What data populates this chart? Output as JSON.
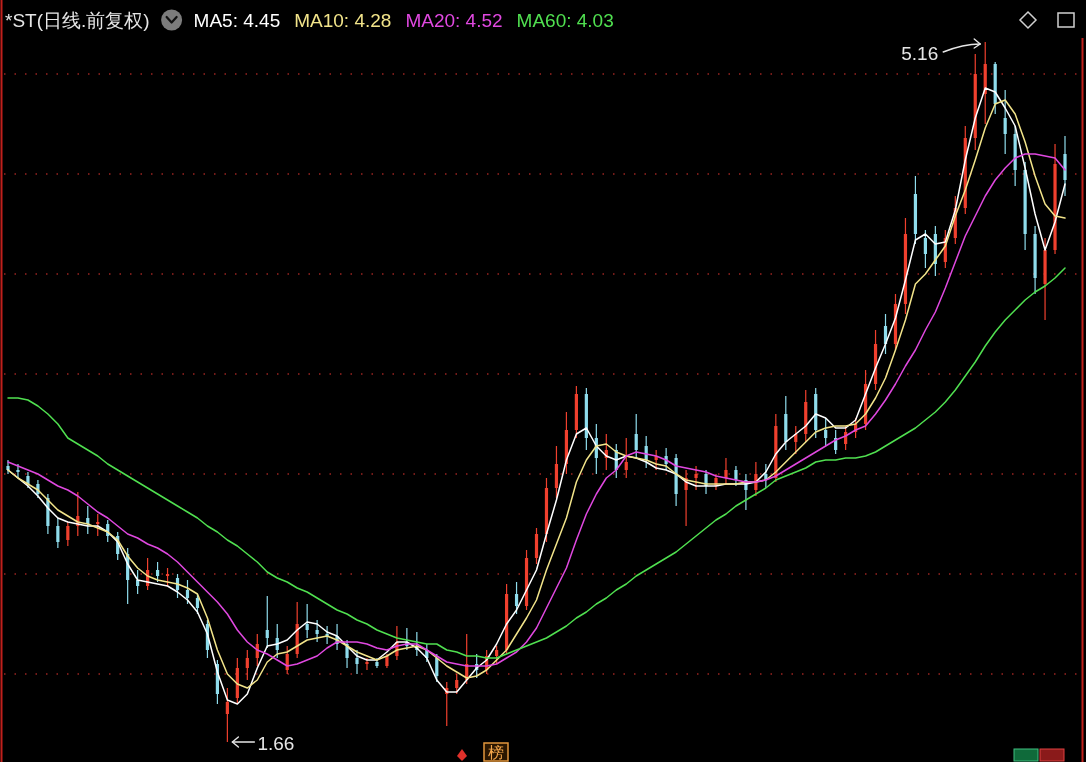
{
  "chart_data": {
    "type": "candlestick",
    "title": "*ST(日线.前复权)",
    "categories": [
      null,
      null,
      null,
      null,
      null,
      null,
      null,
      null,
      null,
      null,
      null,
      null,
      null,
      null,
      null,
      null,
      null,
      null,
      null,
      null,
      null,
      null,
      null,
      null,
      null,
      null,
      null,
      null,
      null,
      null,
      null,
      null,
      null,
      null,
      null,
      null,
      null,
      null,
      null,
      null,
      null,
      null,
      null,
      null,
      null,
      null,
      null,
      null,
      null,
      null,
      null,
      null,
      null,
      null,
      null,
      null,
      null,
      null,
      null,
      null,
      null,
      null,
      null,
      null,
      null,
      null,
      null,
      null,
      null,
      null,
      null,
      null,
      null,
      null,
      null,
      null,
      null,
      null,
      null,
      null,
      null,
      null,
      null,
      null,
      null,
      null,
      null,
      null,
      null,
      null,
      null,
      null,
      null,
      null,
      null,
      null,
      null,
      null,
      null,
      null,
      null,
      null,
      null,
      null,
      null,
      null,
      null
    ],
    "ohlc": [
      [
        3.04,
        3.07,
        3.0,
        3.02
      ],
      [
        3.02,
        3.05,
        2.98,
        3.01
      ],
      [
        2.99,
        3.01,
        2.93,
        2.95
      ],
      [
        2.95,
        2.97,
        2.88,
        2.9
      ],
      [
        2.88,
        2.9,
        2.7,
        2.74
      ],
      [
        2.74,
        2.78,
        2.63,
        2.66
      ],
      [
        2.67,
        2.76,
        2.64,
        2.74
      ],
      [
        2.74,
        2.91,
        2.69,
        2.79
      ],
      [
        2.78,
        2.84,
        2.7,
        2.75
      ],
      [
        2.75,
        2.8,
        2.69,
        2.76
      ],
      [
        2.75,
        2.77,
        2.66,
        2.69
      ],
      [
        2.69,
        2.71,
        2.57,
        2.6
      ],
      [
        2.6,
        2.63,
        2.35,
        2.47
      ],
      [
        2.47,
        2.52,
        2.4,
        2.44
      ],
      [
        2.44,
        2.58,
        2.42,
        2.52
      ],
      [
        2.52,
        2.56,
        2.46,
        2.49
      ],
      [
        2.49,
        2.53,
        2.44,
        2.5
      ],
      [
        2.48,
        2.5,
        2.38,
        2.42
      ],
      [
        2.42,
        2.47,
        2.35,
        2.38
      ],
      [
        2.38,
        2.4,
        2.3,
        2.33
      ],
      [
        2.25,
        2.27,
        2.08,
        2.12
      ],
      [
        2.05,
        2.07,
        1.85,
        1.9
      ],
      [
        1.8,
        1.93,
        1.66,
        1.86
      ],
      [
        1.88,
        2.08,
        1.85,
        2.03
      ],
      [
        2.03,
        2.12,
        1.97,
        2.08
      ],
      [
        2.08,
        2.2,
        2.04,
        2.15
      ],
      [
        2.22,
        2.39,
        2.13,
        2.18
      ],
      [
        2.18,
        2.25,
        2.08,
        2.12
      ],
      [
        2.02,
        2.14,
        2.0,
        2.1
      ],
      [
        2.1,
        2.36,
        2.08,
        2.25
      ],
      [
        2.25,
        2.35,
        2.18,
        2.22
      ],
      [
        2.22,
        2.27,
        2.16,
        2.2
      ],
      [
        2.2,
        2.24,
        2.15,
        2.19
      ],
      [
        2.19,
        2.25,
        2.12,
        2.15
      ],
      [
        2.15,
        2.17,
        2.03,
        2.08
      ],
      [
        2.08,
        2.12,
        2.0,
        2.05
      ],
      [
        2.05,
        2.08,
        2.02,
        2.06
      ],
      [
        2.06,
        2.08,
        2.03,
        2.04
      ],
      [
        2.04,
        2.1,
        2.03,
        2.09
      ],
      [
        2.09,
        2.24,
        2.07,
        2.16
      ],
      [
        2.16,
        2.23,
        2.12,
        2.14
      ],
      [
        2.14,
        2.21,
        2.09,
        2.12
      ],
      [
        2.12,
        2.15,
        2.06,
        2.08
      ],
      [
        2.08,
        2.1,
        1.96,
        1.99
      ],
      [
        1.9,
        1.96,
        1.74,
        1.93
      ],
      [
        1.93,
        2.0,
        1.9,
        1.97
      ],
      [
        1.97,
        2.2,
        1.95,
        2.05
      ],
      [
        2.05,
        2.1,
        1.98,
        2.02
      ],
      [
        2.02,
        2.12,
        2.0,
        2.09
      ],
      [
        2.09,
        2.14,
        2.05,
        2.12
      ],
      [
        2.12,
        2.45,
        2.1,
        2.4
      ],
      [
        2.4,
        2.46,
        2.3,
        2.34
      ],
      [
        2.34,
        2.62,
        2.32,
        2.58
      ],
      [
        2.58,
        2.73,
        2.55,
        2.7
      ],
      [
        2.7,
        2.98,
        2.66,
        2.93
      ],
      [
        2.93,
        3.14,
        2.88,
        3.05
      ],
      [
        3.05,
        3.31,
        3.0,
        3.22
      ],
      [
        3.22,
        3.44,
        3.18,
        3.4
      ],
      [
        3.4,
        3.43,
        3.12,
        3.18
      ],
      [
        3.18,
        3.25,
        3.0,
        3.08
      ],
      [
        3.08,
        3.2,
        3.02,
        3.12
      ],
      [
        3.12,
        3.15,
        2.98,
        3.02
      ],
      [
        3.02,
        3.18,
        2.98,
        3.06
      ],
      [
        3.2,
        3.3,
        3.08,
        3.12
      ],
      [
        3.14,
        3.19,
        3.03,
        3.07
      ],
      [
        3.07,
        3.12,
        3.02,
        3.09
      ],
      [
        3.09,
        3.13,
        3.02,
        3.05
      ],
      [
        3.08,
        3.1,
        2.84,
        2.9
      ],
      [
        2.92,
        3.02,
        2.74,
        2.98
      ],
      [
        2.98,
        3.04,
        2.92,
        3.0
      ],
      [
        3.0,
        3.02,
        2.9,
        2.94
      ],
      [
        2.94,
        3.0,
        2.92,
        2.98
      ],
      [
        2.98,
        3.08,
        2.95,
        3.02
      ],
      [
        3.02,
        3.04,
        2.94,
        2.97
      ],
      [
        2.97,
        3.0,
        2.82,
        2.92
      ],
      [
        2.92,
        3.06,
        2.89,
        3.0
      ],
      [
        3.0,
        3.05,
        2.93,
        2.97
      ],
      [
        2.98,
        3.3,
        2.96,
        3.24
      ],
      [
        3.3,
        3.39,
        3.12,
        3.16
      ],
      [
        3.16,
        3.24,
        3.1,
        3.2
      ],
      [
        3.2,
        3.42,
        3.16,
        3.36
      ],
      [
        3.4,
        3.43,
        3.18,
        3.22
      ],
      [
        3.22,
        3.28,
        3.14,
        3.18
      ],
      [
        3.18,
        3.22,
        3.1,
        3.12
      ],
      [
        3.15,
        3.24,
        3.12,
        3.21
      ],
      [
        3.21,
        3.28,
        3.18,
        3.25
      ],
      [
        3.25,
        3.52,
        3.22,
        3.45
      ],
      [
        3.45,
        3.72,
        3.42,
        3.65
      ],
      [
        3.74,
        3.8,
        3.6,
        3.65
      ],
      [
        3.65,
        3.9,
        3.62,
        3.85
      ],
      [
        3.85,
        4.28,
        3.8,
        4.2
      ],
      [
        4.4,
        4.49,
        4.15,
        4.2
      ],
      [
        4.18,
        4.22,
        4.03,
        4.1
      ],
      [
        4.2,
        4.24,
        3.99,
        4.05
      ],
      [
        4.06,
        4.22,
        4.03,
        4.18
      ],
      [
        4.18,
        4.39,
        4.15,
        4.33
      ],
      [
        4.33,
        4.74,
        4.3,
        4.68
      ],
      [
        4.68,
        5.1,
        4.62,
        5.0
      ],
      [
        4.9,
        5.16,
        4.75,
        5.05
      ],
      [
        5.05,
        5.06,
        4.8,
        4.85
      ],
      [
        4.78,
        4.92,
        4.6,
        4.7
      ],
      [
        4.7,
        4.74,
        4.44,
        4.52
      ],
      [
        4.52,
        4.56,
        4.12,
        4.2
      ],
      [
        4.2,
        4.24,
        3.9,
        3.98
      ],
      [
        3.95,
        4.18,
        3.77,
        4.12
      ],
      [
        4.12,
        4.65,
        4.1,
        4.55
      ],
      [
        4.6,
        4.69,
        4.39,
        4.47
      ]
    ],
    "colors": [
      "#8fdcec",
      "#8fdcec",
      "#8fdcec",
      "#8fdcec",
      "#8fdcec",
      "#8fdcec",
      "#f0402e",
      "#f0402e",
      "#8fdcec",
      "#f0402e",
      "#8fdcec",
      "#8fdcec",
      "#8fdcec",
      "#8fdcec",
      "#f0402e",
      "#8fdcec",
      "#f0402e",
      "#8fdcec",
      "#8fdcec",
      "#8fdcec",
      "#8fdcec",
      "#8fdcec",
      "#f0402e",
      "#f0402e",
      "#f0402e",
      "#f0402e",
      "#8fdcec",
      "#8fdcec",
      "#f0402e",
      "#f0402e",
      "#8fdcec",
      "#8fdcec",
      "#8fdcec",
      "#8fdcec",
      "#8fdcec",
      "#8fdcec",
      "#f0402e",
      "#8fdcec",
      "#f0402e",
      "#f0402e",
      "#8fdcec",
      "#8fdcec",
      "#8fdcec",
      "#8fdcec",
      "#f0402e",
      "#f0402e",
      "#f0402e",
      "#8fdcec",
      "#f0402e",
      "#f0402e",
      "#f0402e",
      "#8fdcec",
      "#f0402e",
      "#f0402e",
      "#f0402e",
      "#f0402e",
      "#f0402e",
      "#f0402e",
      "#8fdcec",
      "#8fdcec",
      "#f0402e",
      "#8fdcec",
      "#f0402e",
      "#8fdcec",
      "#8fdcec",
      "#f0402e",
      "#8fdcec",
      "#8fdcec",
      "#f0402e",
      "#f0402e",
      "#8fdcec",
      "#f0402e",
      "#f0402e",
      "#8fdcec",
      "#8fdcec",
      "#f0402e",
      "#8fdcec",
      "#f0402e",
      "#8fdcec",
      "#f0402e",
      "#f0402e",
      "#8fdcec",
      "#8fdcec",
      "#8fdcec",
      "#f0402e",
      "#f0402e",
      "#f0402e",
      "#f0402e",
      "#8fdcec",
      "#f0402e",
      "#f0402e",
      "#8fdcec",
      "#8fdcec",
      "#8fdcec",
      "#f0402e",
      "#f0402e",
      "#f0402e",
      "#f0402e",
      "#f0402e",
      "#8fdcec",
      "#8fdcec",
      "#8fdcec",
      "#8fdcec",
      "#8fdcec",
      "#f0402e",
      "#f0402e",
      "#8fdcec"
    ],
    "series": [
      {
        "name": "MA5: 4.45",
        "color": "#ffffff",
        "type": "line",
        "values": [
          3.02,
          2.98,
          2.94,
          2.89,
          2.83,
          2.78,
          2.76,
          2.75,
          2.74,
          2.74,
          2.71,
          2.66,
          2.55,
          2.47,
          2.46,
          2.45,
          2.44,
          2.41,
          2.37,
          2.31,
          2.2,
          2.01,
          1.87,
          1.85,
          1.9,
          2.03,
          2.14,
          2.15,
          2.17,
          2.22,
          2.26,
          2.25,
          2.21,
          2.19,
          2.14,
          2.09,
          2.07,
          2.07,
          2.11,
          2.16,
          2.16,
          2.13,
          2.08,
          1.97,
          1.91,
          1.91,
          1.97,
          2.03,
          2.07,
          2.15,
          2.25,
          2.32,
          2.42,
          2.52,
          2.7,
          2.87,
          3.07,
          3.2,
          3.23,
          3.14,
          3.09,
          3.07,
          3.09,
          3.08,
          3.06,
          3.03,
          3.02,
          3.0,
          2.96,
          2.94,
          2.94,
          2.94,
          2.95,
          2.95,
          2.95,
          2.96,
          3.01,
          3.1,
          3.16,
          3.2,
          3.24,
          3.3,
          3.28,
          3.23,
          3.23,
          3.27,
          3.4,
          3.53,
          3.65,
          3.78,
          3.97,
          4.17,
          4.2,
          4.15,
          4.16,
          4.32,
          4.57,
          4.78,
          4.93,
          4.91,
          4.83,
          4.74,
          4.53,
          4.3,
          4.12,
          4.26,
          4.45
        ]
      },
      {
        "name": "MA10: 4.28",
        "color": "#f2e48a",
        "type": "line",
        "values": [
          3.02,
          2.98,
          2.95,
          2.92,
          2.87,
          2.82,
          2.79,
          2.76,
          2.75,
          2.73,
          2.71,
          2.67,
          2.59,
          2.53,
          2.49,
          2.47,
          2.46,
          2.45,
          2.43,
          2.4,
          2.28,
          2.12,
          2.0,
          1.95,
          1.93,
          1.97,
          2.06,
          2.1,
          2.11,
          2.14,
          2.17,
          2.18,
          2.19,
          2.17,
          2.14,
          2.11,
          2.09,
          2.07,
          2.09,
          2.12,
          2.13,
          2.14,
          2.12,
          2.08,
          2.04,
          2.01,
          1.98,
          1.99,
          2.02,
          2.07,
          2.12,
          2.2,
          2.28,
          2.37,
          2.52,
          2.65,
          2.78,
          2.96,
          3.07,
          3.14,
          3.15,
          3.11,
          3.09,
          3.08,
          3.07,
          3.05,
          3.04,
          3.0,
          2.97,
          2.96,
          2.95,
          2.95,
          2.95,
          2.95,
          2.96,
          2.96,
          2.97,
          3.01,
          3.06,
          3.11,
          3.16,
          3.21,
          3.23,
          3.24,
          3.24,
          3.25,
          3.3,
          3.38,
          3.48,
          3.62,
          3.77,
          3.95,
          4.0,
          4.07,
          4.14,
          4.29,
          4.42,
          4.57,
          4.73,
          4.85,
          4.87,
          4.8,
          4.66,
          4.49,
          4.35,
          4.29,
          4.28
        ]
      },
      {
        "name": "MA20: 4.52",
        "color": "#e048e0",
        "type": "line",
        "values": [
          3.06,
          3.04,
          3.02,
          3.0,
          2.97,
          2.94,
          2.92,
          2.89,
          2.85,
          2.81,
          2.78,
          2.74,
          2.7,
          2.68,
          2.65,
          2.63,
          2.6,
          2.56,
          2.51,
          2.46,
          2.41,
          2.36,
          2.3,
          2.22,
          2.16,
          2.12,
          2.1,
          2.07,
          2.04,
          2.05,
          2.07,
          2.09,
          2.13,
          2.16,
          2.16,
          2.16,
          2.15,
          2.13,
          2.12,
          2.14,
          2.15,
          2.15,
          2.12,
          2.09,
          2.06,
          2.05,
          2.04,
          2.04,
          2.04,
          2.05,
          2.08,
          2.11,
          2.16,
          2.23,
          2.33,
          2.43,
          2.53,
          2.67,
          2.8,
          2.9,
          2.98,
          3.02,
          3.09,
          3.11,
          3.1,
          3.09,
          3.07,
          3.04,
          3.03,
          3.02,
          3.01,
          2.99,
          2.98,
          2.97,
          2.96,
          2.96,
          2.97,
          2.99,
          3.02,
          3.05,
          3.08,
          3.11,
          3.14,
          3.17,
          3.19,
          3.22,
          3.24,
          3.3,
          3.37,
          3.45,
          3.54,
          3.62,
          3.72,
          3.81,
          3.93,
          4.06,
          4.19,
          4.29,
          4.39,
          4.47,
          4.53,
          4.58,
          4.6,
          4.6,
          4.59,
          4.58,
          4.52
        ]
      },
      {
        "name": "MA60: 4.03",
        "color": "#50e050",
        "type": "line",
        "values": [
          3.38,
          3.38,
          3.37,
          3.34,
          3.3,
          3.25,
          3.18,
          3.15,
          3.12,
          3.09,
          3.05,
          3.02,
          2.99,
          2.96,
          2.93,
          2.9,
          2.87,
          2.84,
          2.81,
          2.78,
          2.74,
          2.71,
          2.67,
          2.64,
          2.6,
          2.56,
          2.51,
          2.48,
          2.46,
          2.43,
          2.41,
          2.38,
          2.35,
          2.32,
          2.3,
          2.27,
          2.25,
          2.22,
          2.2,
          2.18,
          2.17,
          2.16,
          2.15,
          2.15,
          2.12,
          2.11,
          2.09,
          2.09,
          2.08,
          2.08,
          2.1,
          2.12,
          2.14,
          2.16,
          2.18,
          2.21,
          2.24,
          2.28,
          2.31,
          2.35,
          2.38,
          2.42,
          2.45,
          2.49,
          2.52,
          2.55,
          2.58,
          2.61,
          2.65,
          2.69,
          2.73,
          2.77,
          2.8,
          2.84,
          2.87,
          2.9,
          2.93,
          2.97,
          2.99,
          3.01,
          3.03,
          3.06,
          3.07,
          3.07,
          3.08,
          3.08,
          3.09,
          3.11,
          3.14,
          3.17,
          3.2,
          3.23,
          3.27,
          3.31,
          3.36,
          3.42,
          3.49,
          3.56,
          3.64,
          3.71,
          3.77,
          3.82,
          3.87,
          3.91,
          3.94,
          3.98,
          4.03
        ]
      }
    ],
    "yticks": [
      {
        "value": 2.0,
        "label": null
      },
      {
        "value": 2.5,
        "label": null
      },
      {
        "value": 3.0,
        "label": null
      },
      {
        "value": 3.5,
        "label": null
      },
      {
        "value": 4.0,
        "label": null
      },
      {
        "value": 4.5,
        "label": null
      },
      {
        "value": 5.0,
        "label": null
      }
    ],
    "grid": "y",
    "tick_labels": false,
    "legend": "top left",
    "annotations": [
      "5.16",
      "1.66",
      "榜"
    ]
  }
}
